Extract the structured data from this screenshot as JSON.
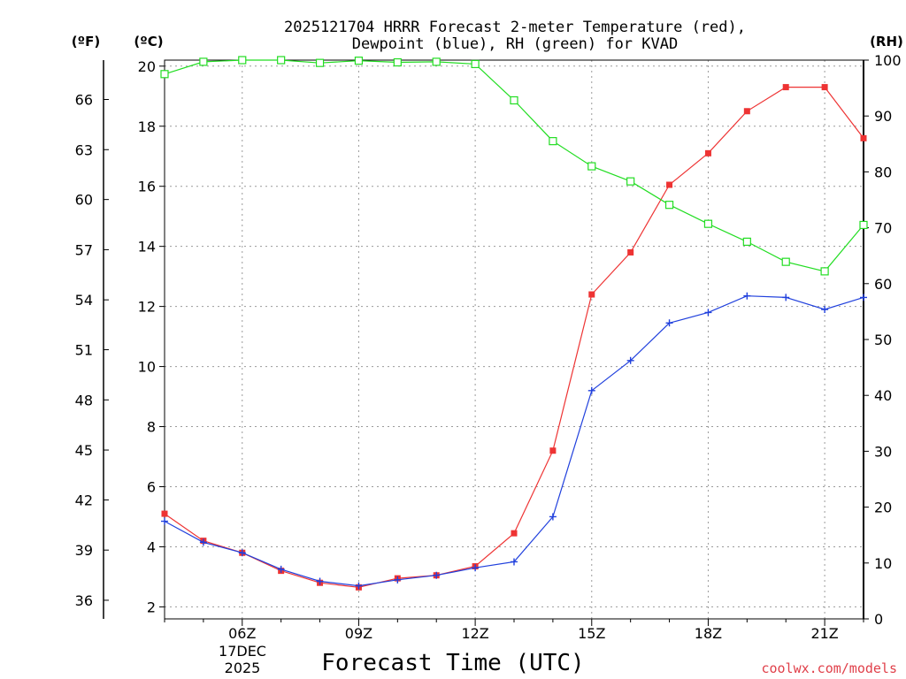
{
  "chart_data": {
    "type": "line",
    "title_line1": "2025121704 HRRR Forecast 2-meter Temperature (red),",
    "title_line2": "Dewpoint (blue), RH (green) for KVAD",
    "xlabel": "Forecast Time (UTC)",
    "left_unit_f": "(ºF)",
    "left_unit_c": "(ºC)",
    "right_unit": "(RH)",
    "credit": "coolwx.com/models",
    "x_hours": [
      4,
      5,
      6,
      7,
      8,
      9,
      10,
      11,
      12,
      13,
      14,
      15,
      16,
      17,
      18,
      19,
      20,
      21,
      22
    ],
    "xlim": [
      4,
      22
    ],
    "x_ticks": [
      {
        "hour": 6,
        "label": "06Z"
      },
      {
        "hour": 9,
        "label": "09Z"
      },
      {
        "hour": 12,
        "label": "12Z"
      },
      {
        "hour": 15,
        "label": "15Z"
      },
      {
        "hour": 18,
        "label": "18Z"
      },
      {
        "hour": 21,
        "label": "21Z"
      }
    ],
    "date_label_line1": "17DEC",
    "date_label_line2": "2025",
    "ylim_c": [
      1.6,
      20.2
    ],
    "c_ticks": [
      2,
      4,
      6,
      8,
      10,
      12,
      14,
      16,
      18,
      20
    ],
    "f_ticks": [
      {
        "label": "36",
        "c": 2.22
      },
      {
        "label": "39",
        "c": 3.89
      },
      {
        "label": "42",
        "c": 5.56
      },
      {
        "label": "45",
        "c": 7.22
      },
      {
        "label": "48",
        "c": 8.89
      },
      {
        "label": "51",
        "c": 10.56
      },
      {
        "label": "54",
        "c": 12.22
      },
      {
        "label": "57",
        "c": 13.89
      },
      {
        "label": "60",
        "c": 15.56
      },
      {
        "label": "63",
        "c": 17.22
      },
      {
        "label": "66",
        "c": 18.89
      }
    ],
    "ylim_rh": [
      0,
      100
    ],
    "rh_ticks": [
      0,
      10,
      20,
      30,
      40,
      50,
      60,
      70,
      80,
      90,
      100
    ],
    "series": [
      {
        "name": "Temperature",
        "color": "#ee3333",
        "marker": "filled-square",
        "values": [
          5.1,
          4.2,
          3.8,
          3.2,
          2.8,
          2.65,
          2.95,
          3.05,
          3.35,
          4.45,
          7.2,
          12.4,
          13.8,
          16.05,
          17.1,
          18.5,
          19.3,
          19.3,
          17.6
        ]
      },
      {
        "name": "Dewpoint",
        "color": "#2040dd",
        "marker": "plus",
        "values": [
          4.85,
          4.15,
          3.8,
          3.25,
          2.85,
          2.7,
          2.9,
          3.05,
          3.3,
          3.5,
          5.0,
          9.2,
          10.2,
          11.45,
          11.8,
          12.35,
          12.3,
          11.9,
          12.3
        ]
      },
      {
        "name": "RH",
        "color": "#22dd22",
        "marker": "open-square",
        "axis": "right",
        "values": [
          97.5,
          99.7,
          100,
          100,
          99.5,
          99.9,
          99.6,
          99.7,
          99.3,
          92.8,
          85.5,
          81.0,
          78.3,
          74.1,
          70.7,
          67.5,
          63.9,
          62.2,
          70.5
        ]
      }
    ]
  }
}
